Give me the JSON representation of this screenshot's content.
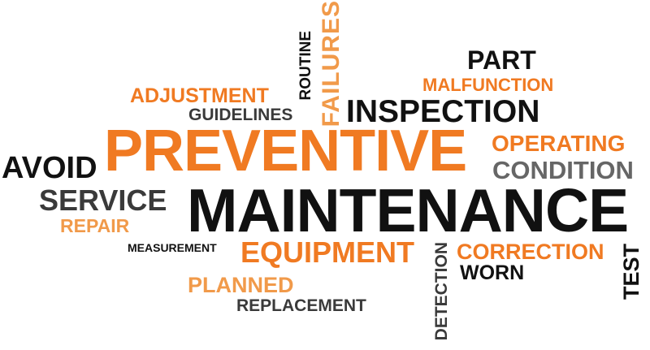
{
  "colors": {
    "orange": "#f07a22",
    "light_orange": "#f19a4a",
    "black": "#111111",
    "dark_gray": "#3a3a3a",
    "gray": "#666666"
  },
  "words": {
    "part": "PART",
    "malfunction": "MALFUNCTION",
    "adjustment": "ADJUSTMENT",
    "routine": "ROUTINE",
    "failures": "FAILURES",
    "guidelines": "GUIDELINES",
    "inspection": "INSPECTION",
    "preventive": "PREVENTIVE",
    "operating": "OPERATING",
    "avoid": "AVOID",
    "condition": "CONDITION",
    "service": "SERVICE",
    "maintenance": "MAINTENANCE",
    "repair": "REPAIR",
    "measurement": "MEASUREMENT",
    "equipment": "EQUIPMENT",
    "correction": "CORRECTION",
    "worn": "WORN",
    "test": "TEST",
    "planned": "PLANNED",
    "replacement": "REPLACEMENT",
    "detection": "DETECTION"
  }
}
